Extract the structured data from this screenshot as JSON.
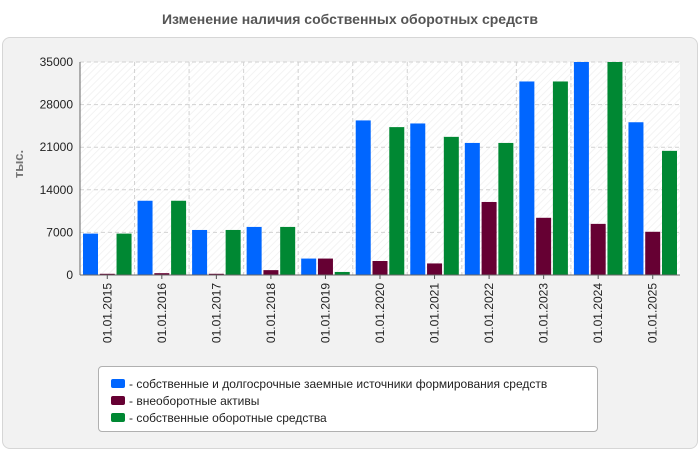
{
  "chart_data": {
    "type": "bar",
    "title": "Изменение наличия собственных оборотных средств",
    "ylabel": "тыс.",
    "xlabel": "",
    "ylim": [
      0,
      35000
    ],
    "yticks": [
      0,
      7000,
      14000,
      21000,
      28000,
      35000
    ],
    "y_tick_labels": [
      "0",
      "7000",
      "14000",
      "21000",
      "28000",
      "35000"
    ],
    "grid": true,
    "legend_position": "bottom",
    "categories": [
      "01.01.2015",
      "01.01.2016",
      "01.01.2017",
      "01.01.2018",
      "01.01.2019",
      "01.01.2020",
      "01.01.2021",
      "01.01.2022",
      "01.01.2023",
      "01.01.2024",
      "01.01.2025"
    ],
    "series": [
      {
        "name": "- собственные и долгосрочные заемные источники формирования средств",
        "color": "#0066ff",
        "values": [
          6800,
          12200,
          7400,
          7900,
          2700,
          25400,
          24900,
          21700,
          31800,
          35000,
          25100
        ]
      },
      {
        "name": "- внеоборотные активы",
        "color": "#660033",
        "values": [
          200,
          300,
          200,
          800,
          2700,
          2300,
          1900,
          12000,
          9400,
          8400,
          7100
        ]
      },
      {
        "name": "- собственные оборотные средства",
        "color": "#008833",
        "values": [
          6800,
          12200,
          7400,
          7900,
          500,
          24300,
          22700,
          21700,
          31800,
          35000,
          20400
        ]
      }
    ]
  }
}
